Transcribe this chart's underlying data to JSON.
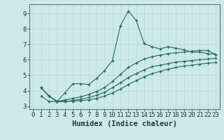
{
  "xlabel": "Humidex (Indice chaleur)",
  "bg_color": "#cde8ea",
  "grid_color": "#c0d8db",
  "line_color": "#1e6b5e",
  "xlim": [
    -0.5,
    23.5
  ],
  "ylim": [
    2.8,
    9.6
  ],
  "yticks": [
    3,
    4,
    5,
    6,
    7,
    8,
    9
  ],
  "xticks": [
    0,
    1,
    2,
    3,
    4,
    5,
    6,
    7,
    8,
    9,
    10,
    11,
    12,
    13,
    14,
    15,
    16,
    17,
    18,
    19,
    20,
    21,
    22,
    23
  ],
  "line1_x": [
    1,
    2,
    3,
    4,
    5,
    6,
    7,
    8,
    9,
    10,
    11,
    12,
    13,
    14,
    15,
    16,
    17,
    18,
    19,
    20,
    21,
    22,
    23
  ],
  "line1_y": [
    3.65,
    3.3,
    3.3,
    3.85,
    4.45,
    4.45,
    4.4,
    4.8,
    5.3,
    5.95,
    8.2,
    9.15,
    8.55,
    7.05,
    6.85,
    6.7,
    6.85,
    6.75,
    6.65,
    6.5,
    6.5,
    6.4,
    6.35
  ],
  "line2_x": [
    1,
    2,
    3,
    4,
    5,
    6,
    7,
    8,
    9,
    10,
    11,
    12,
    13,
    14,
    15,
    16,
    17,
    18,
    19,
    20,
    21,
    22,
    23
  ],
  "line2_y": [
    4.2,
    3.65,
    3.3,
    3.3,
    3.35,
    3.45,
    3.55,
    3.7,
    3.9,
    4.2,
    4.5,
    4.85,
    5.1,
    5.35,
    5.55,
    5.65,
    5.75,
    5.85,
    5.9,
    5.95,
    6.0,
    6.05,
    6.1
  ],
  "line3_x": [
    1,
    2,
    3,
    4,
    5,
    6,
    7,
    8,
    9,
    10,
    11,
    12,
    13,
    14,
    15,
    16,
    17,
    18,
    19,
    20,
    21,
    22,
    23
  ],
  "line3_y": [
    4.2,
    3.65,
    3.3,
    3.4,
    3.5,
    3.6,
    3.75,
    3.95,
    4.2,
    4.6,
    5.05,
    5.5,
    5.8,
    6.05,
    6.2,
    6.3,
    6.4,
    6.45,
    6.5,
    6.55,
    6.6,
    6.6,
    6.35
  ],
  "line4_x": [
    1,
    2,
    3,
    4,
    5,
    6,
    7,
    8,
    9,
    10,
    11,
    12,
    13,
    14,
    15,
    16,
    17,
    18,
    19,
    20,
    21,
    22,
    23
  ],
  "line4_y": [
    4.2,
    3.65,
    3.3,
    3.3,
    3.32,
    3.35,
    3.4,
    3.5,
    3.65,
    3.85,
    4.1,
    4.4,
    4.65,
    4.9,
    5.1,
    5.25,
    5.4,
    5.5,
    5.6,
    5.65,
    5.72,
    5.78,
    5.82
  ],
  "tick_fontsize": 6.5,
  "xlabel_fontsize": 7.5
}
